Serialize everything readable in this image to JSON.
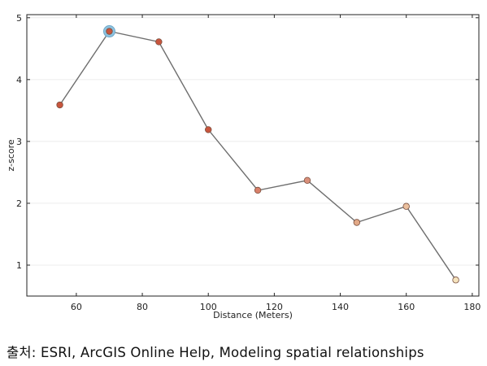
{
  "chart_data": {
    "type": "line",
    "title": "",
    "xlabel": "Distance (Meters)",
    "ylabel": "z-score",
    "xlim": [
      45,
      182
    ],
    "ylim": [
      0.5,
      5.05
    ],
    "xticks": [
      60,
      80,
      100,
      120,
      140,
      160,
      180
    ],
    "yticks": [
      1,
      2,
      3,
      4,
      5
    ],
    "grid": "horizontal",
    "line_color": "#6e6e6e",
    "highlight_index": 1,
    "highlight_color": "#8ec3e0",
    "series": [
      {
        "x": [
          55,
          70,
          85,
          100,
          115,
          130,
          145,
          160,
          175
        ],
        "y": [
          3.59,
          4.78,
          4.61,
          3.19,
          2.21,
          2.37,
          1.69,
          1.95,
          0.76
        ],
        "colors": [
          "#c8553d",
          "#c8553d",
          "#c8553d",
          "#c8553d",
          "#d8806a",
          "#d98f7a",
          "#e2a987",
          "#ebc09e",
          "#f4e2bc"
        ]
      }
    ]
  },
  "caption": "출처: ESRI, ArcGIS Online Help, Modeling spatial relationships"
}
